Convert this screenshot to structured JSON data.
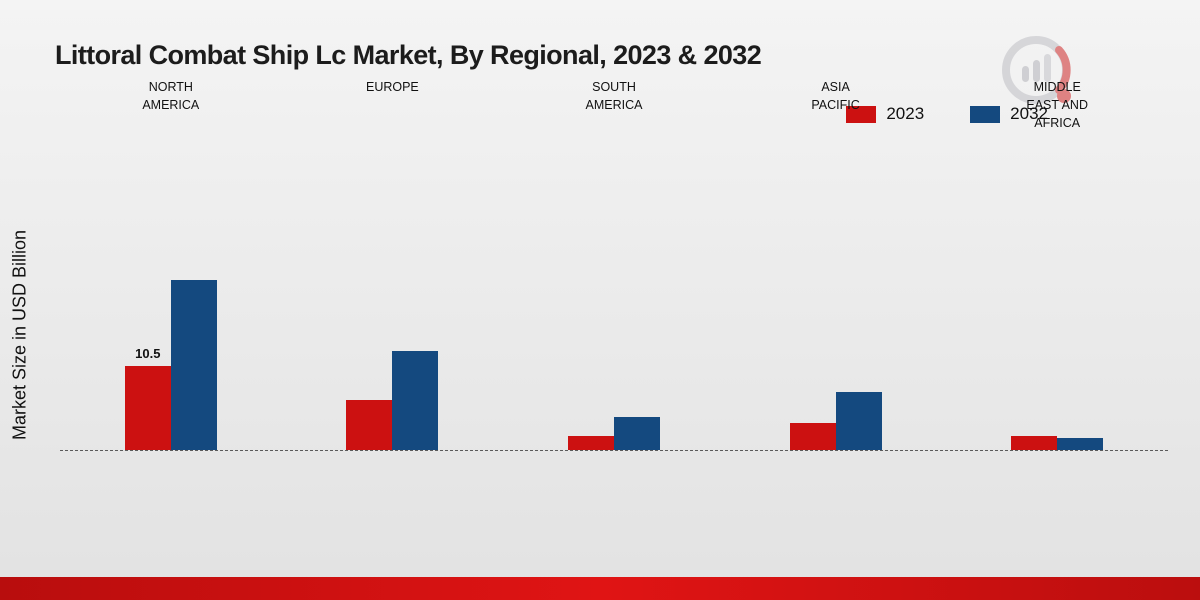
{
  "title": "Littoral Combat Ship Lc Market, By Regional, 2023 & 2032",
  "ylabel": "Market Size in USD Billion",
  "legend": [
    {
      "label": "2023",
      "color": "#cc1111"
    },
    {
      "label": "2032",
      "color": "#14497f"
    }
  ],
  "colors": {
    "series_2023": "#cc1111",
    "series_2032": "#14497f",
    "bottom_band": "#cf0f0f",
    "background": "#ececec"
  },
  "chart_data": {
    "type": "bar",
    "title": "Littoral Combat Ship Lc Market, By Regional, 2023 & 2032",
    "xlabel": "",
    "ylabel": "Market Size in USD Billion",
    "ylim": [
      0,
      25
    ],
    "grid": false,
    "legend_position": "top-right",
    "baseline_style": "dashed",
    "categories": [
      "NORTH AMERICA",
      "EUROPE",
      "SOUTH AMERICA",
      "ASIA PACIFIC",
      "MIDDLE EAST AND AFRICA"
    ],
    "series": [
      {
        "name": "2023",
        "color": "#cc1111",
        "values": [
          10.5,
          6.2,
          1.8,
          3.4,
          1.7
        ]
      },
      {
        "name": "2032",
        "color": "#14497f",
        "values": [
          21.2,
          12.4,
          4.1,
          7.2,
          1.5
        ]
      }
    ],
    "value_labels": [
      {
        "series_index": 0,
        "category_index": 0,
        "text": "10.5"
      }
    ]
  }
}
